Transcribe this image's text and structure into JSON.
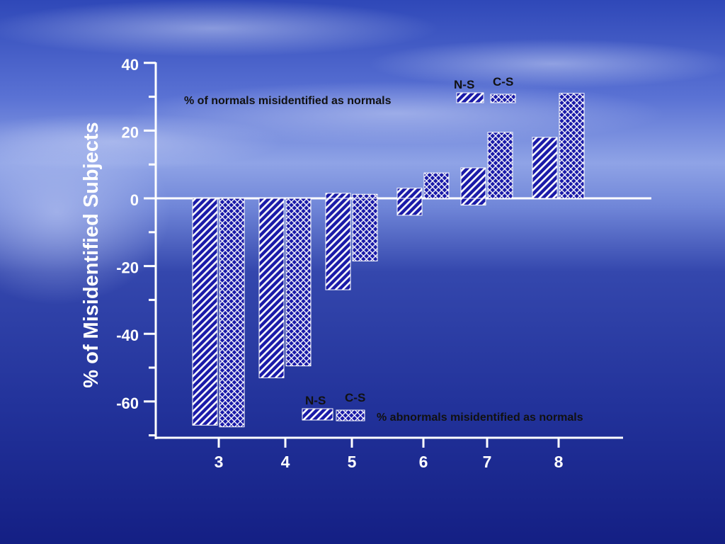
{
  "colors": {
    "bar": "#1a1aa8",
    "hatch": "#ffffff",
    "axis": "#ffffff",
    "text": "#ffffff",
    "legend_text": "#111111",
    "sky_top": "#3f5bc4",
    "sky_mid": "#7f94e0",
    "sea": "#1c2d9a",
    "sea_deep": "#0f1c80"
  },
  "chart_data": {
    "type": "bar",
    "ylabel": "% of Misidentified Subjects",
    "xlabel": "",
    "ylim": [
      -70,
      40
    ],
    "yticks": [
      40,
      20,
      0,
      -20,
      -40,
      -60
    ],
    "ytick_labels": [
      "40",
      "20",
      "0",
      "-20",
      "-40",
      "-60"
    ],
    "grid": false,
    "categories": [
      "3",
      "4",
      "5",
      "6",
      "7",
      "8"
    ],
    "series": [
      {
        "name": "N-S",
        "pattern": "diagonal",
        "group": "normals",
        "values": [
          0,
          0,
          1.5,
          3,
          9,
          18
        ]
      },
      {
        "name": "C-S",
        "pattern": "crosshatch",
        "group": "normals",
        "values": [
          0,
          0,
          1.2,
          7.5,
          19.5,
          31
        ]
      },
      {
        "name": "N-S",
        "pattern": "diagonal",
        "group": "abnormals",
        "values": [
          -67,
          -53,
          -27,
          -5,
          -2,
          0
        ]
      },
      {
        "name": "C-S",
        "pattern": "crosshatch",
        "group": "abnormals",
        "values": [
          -67.5,
          -49.5,
          -18.5,
          0,
          0,
          0
        ]
      }
    ],
    "legends": [
      {
        "label": "% of normals misidentified as normals",
        "keys": [
          "N-S",
          "C-S"
        ],
        "placement": "top-right"
      },
      {
        "label": "% abnormals misidentified as normals",
        "keys": [
          "N-S",
          "C-S"
        ],
        "placement": "bottom-right"
      }
    ]
  }
}
